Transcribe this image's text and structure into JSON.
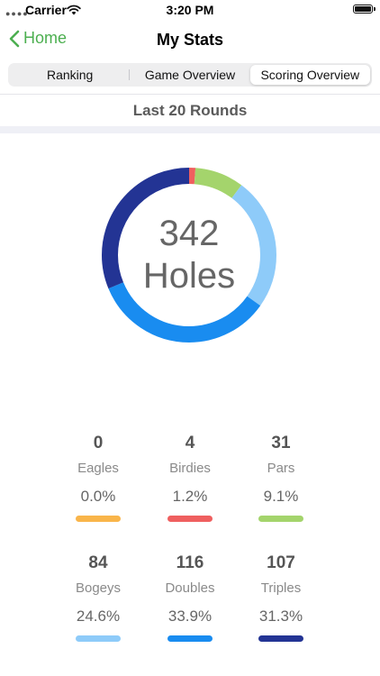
{
  "status_bar": {
    "carrier": "Carrier",
    "time": "3:20 PM"
  },
  "nav": {
    "back_label": "Home",
    "title": "My Stats"
  },
  "tabs": [
    {
      "label": "Ranking",
      "active": false
    },
    {
      "label": "Game Overview",
      "active": false
    },
    {
      "label": "Scoring Overview",
      "active": true
    }
  ],
  "section_title": "Last 20 Rounds",
  "summary": {
    "total": "342",
    "unit": "Holes"
  },
  "stats": [
    {
      "count": "0",
      "name": "Eagles",
      "percent": "0.0%",
      "color": "#f9b54a"
    },
    {
      "count": "4",
      "name": "Birdies",
      "percent": "1.2%",
      "color": "#ef5f5f"
    },
    {
      "count": "31",
      "name": "Pars",
      "percent": "9.1%",
      "color": "#a4d46c"
    },
    {
      "count": "84",
      "name": "Bogeys",
      "percent": "24.6%",
      "color": "#8ecbf9"
    },
    {
      "count": "116",
      "name": "Doubles",
      "percent": "33.9%",
      "color": "#198cf0"
    },
    {
      "count": "107",
      "name": "Triples",
      "percent": "31.3%",
      "color": "#233494"
    }
  ],
  "chart_data": {
    "type": "pie",
    "categories": [
      "Eagles",
      "Birdies",
      "Pars",
      "Bogeys",
      "Doubles",
      "Triples"
    ],
    "values": [
      0,
      4,
      31,
      84,
      116,
      107
    ],
    "colors": [
      "#f9b54a",
      "#ef5f5f",
      "#a4d46c",
      "#8ecbf9",
      "#198cf0",
      "#233494"
    ],
    "title": "",
    "center_text": "342 Holes"
  },
  "theme": {
    "accent": "#4caf50"
  }
}
